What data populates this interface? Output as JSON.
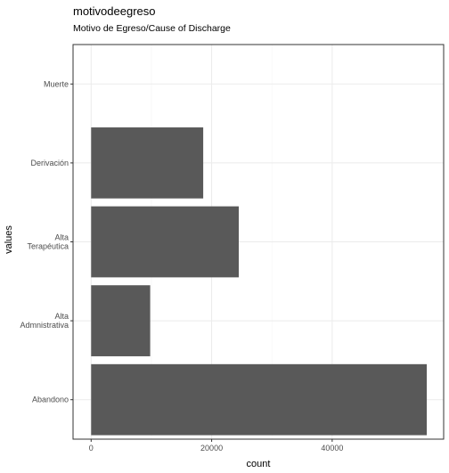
{
  "chart_data": {
    "type": "bar",
    "orientation": "horizontal",
    "title": "motivodeegreso",
    "subtitle": "Motivo de Egreso/Cause of Discharge",
    "xlabel": "count",
    "ylabel": "values",
    "categories": [
      {
        "lines": [
          "Muerte"
        ]
      },
      {
        "lines": [
          "Derivación"
        ]
      },
      {
        "lines": [
          "Alta",
          "Terapéutica"
        ]
      },
      {
        "lines": [
          "Alta",
          "Admnistrativa"
        ]
      },
      {
        "lines": [
          "Abandono"
        ]
      }
    ],
    "values": [
      0,
      18600,
      24500,
      9800,
      55700
    ],
    "xlim": [
      -3000,
      58500
    ],
    "xticks": [
      0,
      20000,
      40000
    ],
    "grid": true,
    "bar_color": "#595959",
    "panel_border_color": "#333333",
    "grid_major_color": "#ebebeb",
    "grid_minor_color": "#f5f5f5"
  }
}
